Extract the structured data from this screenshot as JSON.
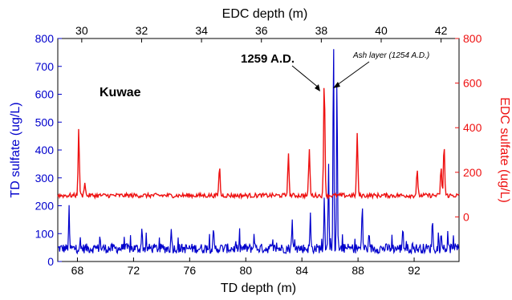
{
  "chart_data": {
    "type": "line",
    "xlabel_bottom": "TD depth (m)",
    "xlabel_top": "EDC depth (m)",
    "ylabel_left": "TD sulfate (ug/L)",
    "ylabel_right": "EDC sulfate (ug/L)",
    "x_bottom_ticks": [
      "68",
      "72",
      "76",
      "80",
      "84",
      "88",
      "92"
    ],
    "x_top_ticks": [
      "30",
      "32",
      "34",
      "36",
      "38",
      "40",
      "42"
    ],
    "y_left_ticks": [
      "0",
      "100",
      "200",
      "300",
      "400",
      "500",
      "600",
      "700",
      "800"
    ],
    "y_right_ticks": [
      "0",
      "200",
      "400",
      "600",
      "800"
    ],
    "x_bottom_range": [
      66.6,
      95.2
    ],
    "x_top_range": [
      29.2,
      42.6
    ],
    "y_left_range": [
      0,
      800
    ],
    "y_right_range": [
      -200,
      800
    ],
    "grid": false,
    "legend": "none",
    "colors": {
      "td_series": "#0000cc",
      "edc_series": "#ee1111",
      "left_axis": "#0000cc",
      "right_axis": "#ee1111"
    },
    "series": [
      {
        "axis": "td",
        "baseline": 45,
        "noise": 35,
        "peaks": [
          {
            "x": 67.4,
            "y": 185
          },
          {
            "x": 69.6,
            "y": 90
          },
          {
            "x": 72.6,
            "y": 110
          },
          {
            "x": 74.7,
            "y": 120
          },
          {
            "x": 77.7,
            "y": 105
          },
          {
            "x": 80.6,
            "y": 100
          },
          {
            "x": 83.3,
            "y": 145
          },
          {
            "x": 84.6,
            "y": 170
          },
          {
            "x": 85.6,
            "y": 250
          },
          {
            "x": 85.9,
            "y": 360
          },
          {
            "x": 86.25,
            "y": 800
          },
          {
            "x": 86.5,
            "y": 690
          },
          {
            "x": 88.3,
            "y": 210
          },
          {
            "x": 91.2,
            "y": 130
          },
          {
            "x": 93.3,
            "y": 160
          },
          {
            "x": 94.8,
            "y": 80
          }
        ]
      },
      {
        "axis": "edc",
        "baseline": 95,
        "noise": 20,
        "peaks": [
          {
            "x": 29.9,
            "y": 390
          },
          {
            "x": 30.1,
            "y": 160
          },
          {
            "x": 34.6,
            "y": 230
          },
          {
            "x": 36.9,
            "y": 280
          },
          {
            "x": 37.6,
            "y": 310
          },
          {
            "x": 38.1,
            "y": 630
          },
          {
            "x": 39.2,
            "y": 380
          },
          {
            "x": 41.2,
            "y": 210
          },
          {
            "x": 42.0,
            "y": 220
          },
          {
            "x": 42.1,
            "y": 330
          }
        ]
      }
    ],
    "annotations": [
      {
        "text": "Kuwae",
        "bold": true
      },
      {
        "text": "1259 A.D.",
        "bold": true
      },
      {
        "text": "Ash layer (1254 A.D.)",
        "italic": true
      }
    ]
  }
}
